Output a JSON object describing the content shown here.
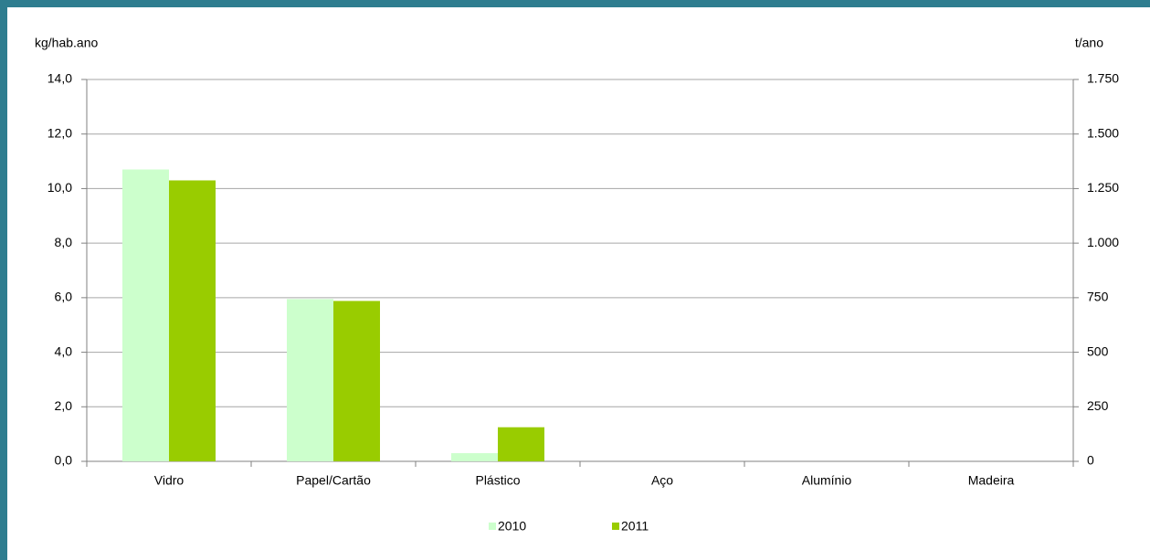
{
  "chart_data": {
    "type": "bar",
    "y_label": "kg/hab.ano",
    "y2_label": "t/ano",
    "categories": [
      "Vidro",
      "Papel/Cartão",
      "Plástico",
      "Aço",
      "Alumínio",
      "Madeira"
    ],
    "series": [
      {
        "name": "2010",
        "color": "#ccffcc",
        "values": [
          10.7,
          5.95,
          0.3,
          0,
          0,
          0
        ]
      },
      {
        "name": "2011",
        "color": "#99cc00",
        "values": [
          10.3,
          5.88,
          1.25,
          0,
          0,
          0
        ]
      }
    ],
    "ylim": [
      0,
      14
    ],
    "yticks": [
      {
        "value": 0,
        "label": "0,0"
      },
      {
        "value": 2,
        "label": "2,0"
      },
      {
        "value": 4,
        "label": "4,0"
      },
      {
        "value": 6,
        "label": "6,0"
      },
      {
        "value": 8,
        "label": "8,0"
      },
      {
        "value": 10,
        "label": "10,0"
      },
      {
        "value": 12,
        "label": "12,0"
      },
      {
        "value": 14,
        "label": "14,0"
      }
    ],
    "y2lim": [
      0,
      1750
    ],
    "y2ticks": [
      0,
      250,
      500,
      750,
      {
        "value": 1000,
        "label": "1.000"
      },
      {
        "value": 1250,
        "label": "1.250"
      },
      {
        "value": 1500,
        "label": "1.500"
      },
      {
        "value": 1750,
        "label": "1.750"
      }
    ],
    "grid": true,
    "legend": "bottom"
  }
}
